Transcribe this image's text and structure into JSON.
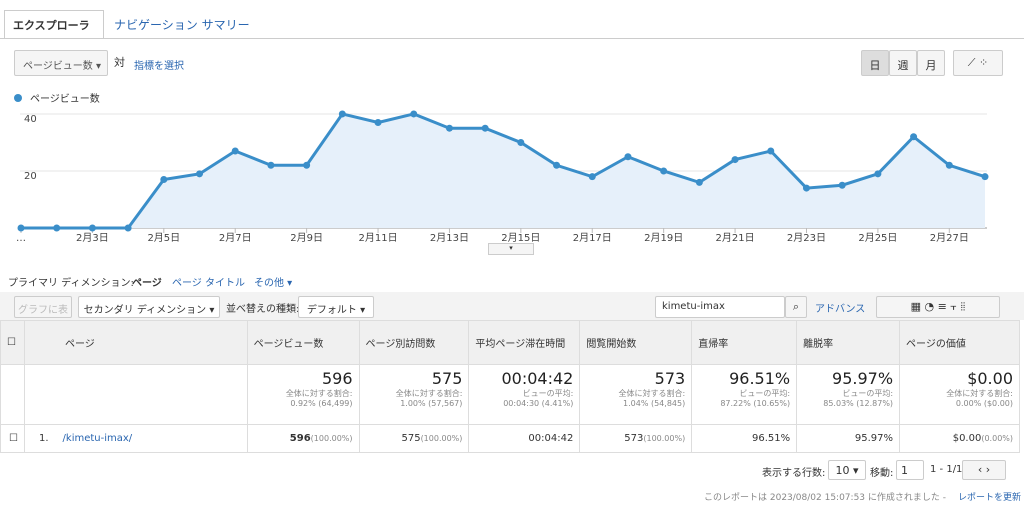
{
  "tabs": [
    "エクスプローラ",
    "ナビゲーション サマリー"
  ],
  "metric": {
    "select": "ページビュー数",
    "vs": "対",
    "choose": "指標を選択"
  },
  "period_buttons": [
    "日",
    "週",
    "月"
  ],
  "chart_data": {
    "type": "line",
    "series": [
      {
        "name": "ページビュー数",
        "color": "#3a8ec9",
        "values": [
          0,
          0,
          0,
          0,
          17,
          19,
          27,
          22,
          22,
          40,
          37,
          40,
          35,
          35,
          30,
          22,
          18,
          25,
          20,
          16,
          24,
          27,
          14,
          15,
          19,
          32,
          22,
          18
        ]
      }
    ],
    "categories": [
      "…",
      null,
      "2月3日",
      null,
      "2月5日",
      null,
      "2月7日",
      null,
      "2月9日",
      null,
      "2月11日",
      null,
      "2月13日",
      null,
      "2月15日",
      null,
      "2月17日",
      null,
      "2月19日",
      null,
      "2月21日",
      null,
      "2月23日",
      null,
      "2月25日",
      null,
      "2月27日",
      null
    ],
    "ylim": [
      0,
      43
    ],
    "yticks": [
      20,
      40
    ],
    "grid": true
  },
  "dimension": {
    "label": "プライマリ ディメンション:",
    "options": [
      "ページ",
      "ページ タイトル",
      "その他"
    ]
  },
  "toolbar": {
    "plot": "グラフに表示",
    "secondary": "セカンダリ ディメンション",
    "sort_label": "並べ替えの種類:",
    "sort": "デフォルト",
    "search": "kimetu-imax",
    "advanced": "アドバンス"
  },
  "table": {
    "headers": [
      "ページ",
      "ページビュー数",
      "ページ別訪問数",
      "平均ページ滞在時間",
      "閲覧開始数",
      "直帰率",
      "離脱率",
      "ページの価値"
    ],
    "totals": [
      [
        "596",
        "全体に対する割合:",
        "0.92% (64,499)"
      ],
      [
        "575",
        "全体に対する割合:",
        "1.00% (57,567)"
      ],
      [
        "00:04:42",
        "ビューの平均:",
        "00:04:30 (4.41%)"
      ],
      [
        "573",
        "全体に対する割合:",
        "1.04% (54,845)"
      ],
      [
        "96.51%",
        "ビューの平均:",
        "87.22% (10.65%)"
      ],
      [
        "95.97%",
        "ビューの平均:",
        "85.03% (12.87%)"
      ],
      [
        "$0.00",
        "全体に対する割合:",
        "0.00% ($0.00)"
      ]
    ],
    "rows": [
      {
        "index": "1.",
        "page": "/kimetu-imax/",
        "cells": [
          [
            "596",
            "(100.00%)"
          ],
          [
            "575",
            "(100.00%)"
          ],
          [
            "00:04:42"
          ],
          [
            "573",
            "(100.00%)"
          ],
          [
            "96.51%"
          ],
          [
            "95.97%"
          ],
          [
            "$0.00",
            "(0.00%)"
          ]
        ]
      }
    ]
  },
  "footer": {
    "rows_label": "表示する行数:",
    "rows_value": "10",
    "goto": "移動:",
    "goto_value": "1",
    "range": "1 - 1/1",
    "report": "このレポートは 2023/08/02 15:07:53 に作成されました -",
    "refresh": "レポートを更新"
  }
}
